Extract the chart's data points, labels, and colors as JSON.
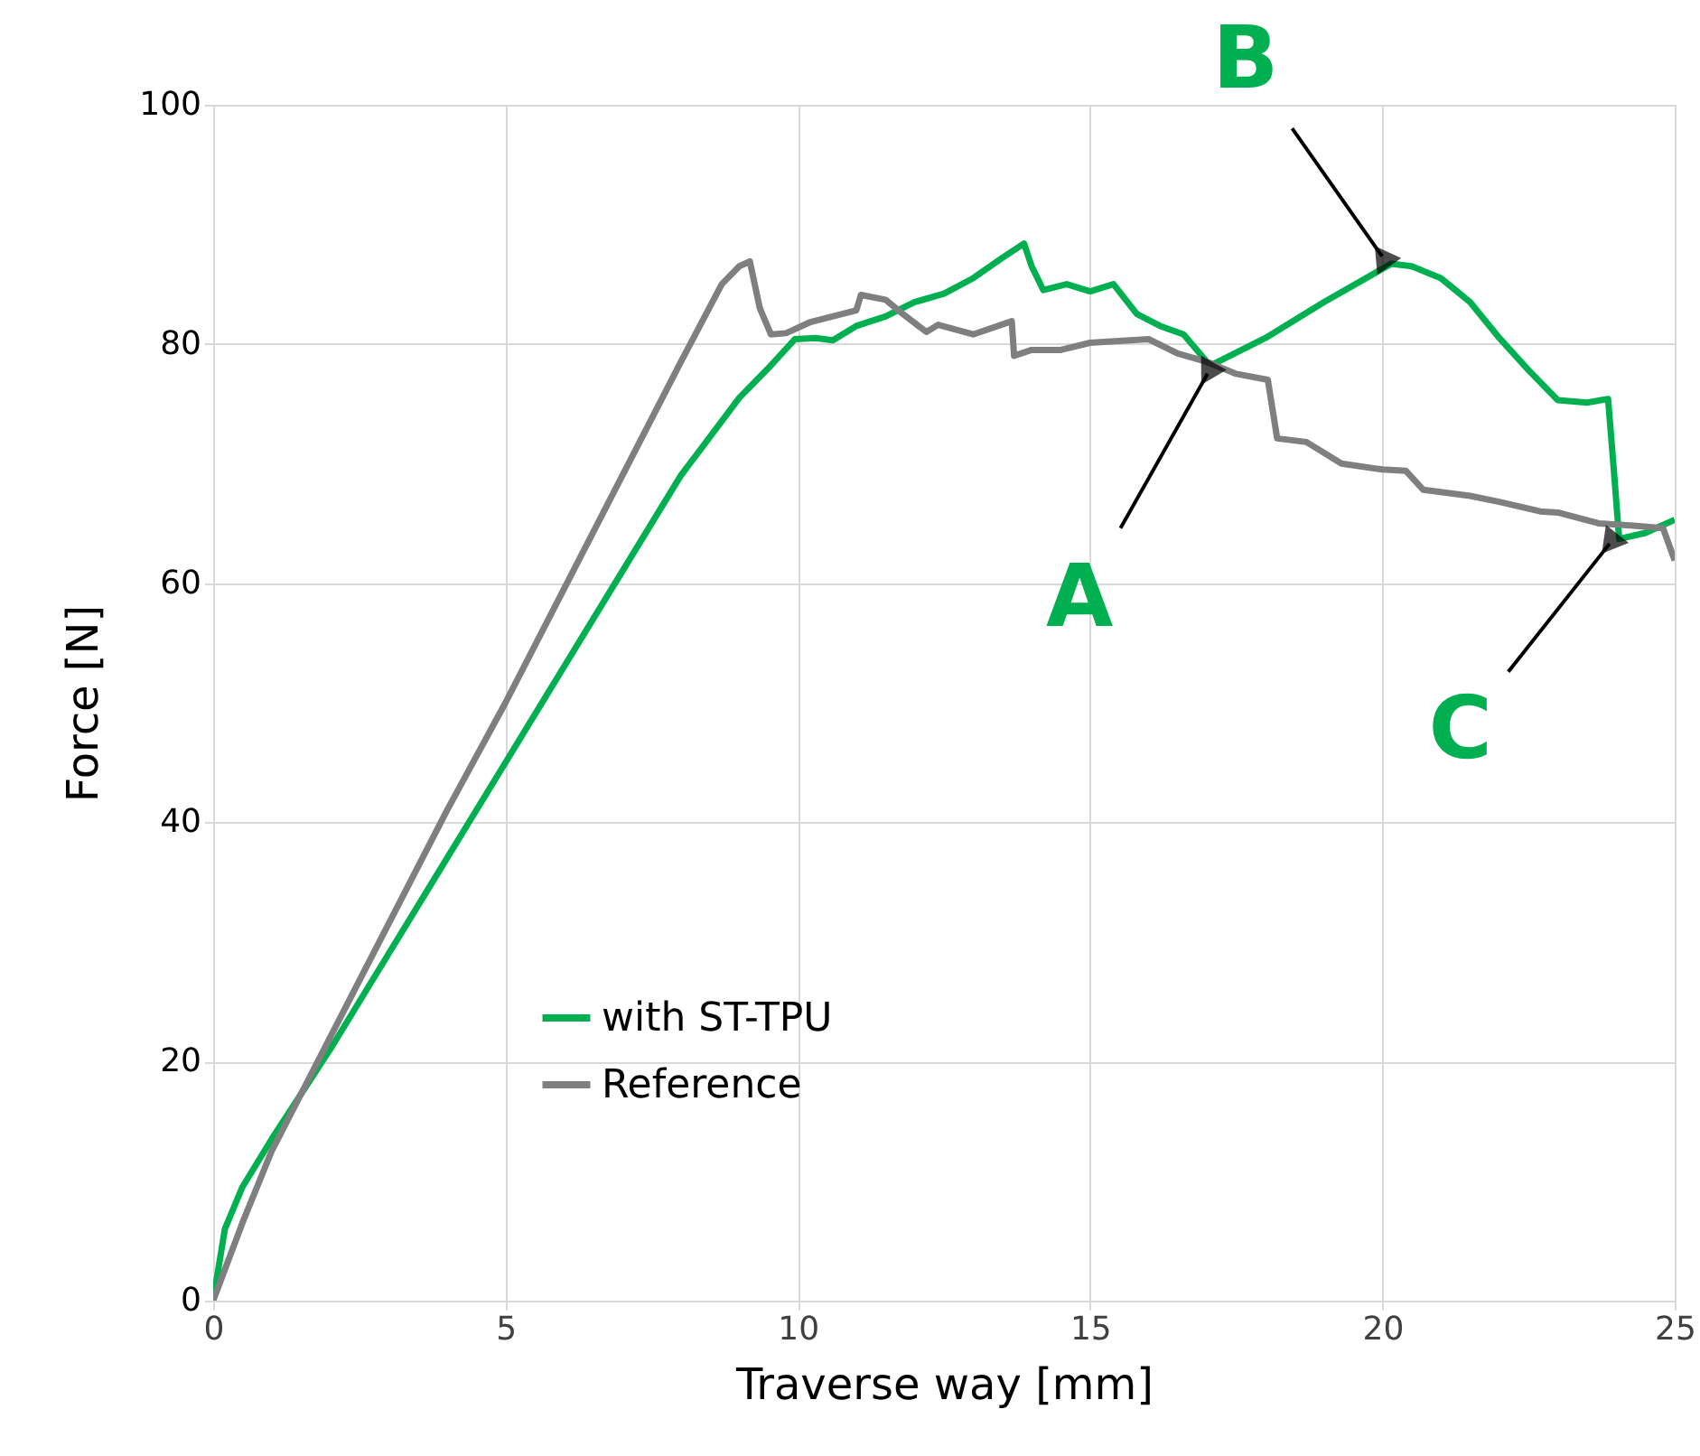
{
  "chart_data": {
    "type": "line",
    "xlabel": "Traverse way [mm]",
    "ylabel": "Force [N]",
    "x": [
      0,
      0.2,
      0.5,
      1,
      2,
      3,
      4,
      5,
      6,
      7,
      8,
      9,
      9.5,
      9.95,
      10.3,
      10.6,
      11,
      11.5,
      12,
      12.5,
      13,
      13.5,
      13.87,
      14,
      14.2,
      14.6,
      15,
      15.4,
      15.8,
      16.2,
      16.6,
      17,
      17.1,
      18,
      19,
      20.15,
      20.5,
      21,
      21.5,
      22,
      22.5,
      23,
      23.5,
      23.86,
      23.95,
      24.05,
      24.5,
      25
    ],
    "series": [
      {
        "name": "with ST-TPU",
        "color": "#00b050",
        "values": [
          0,
          6,
          9.5,
          13.5,
          21,
          29,
          37,
          45,
          53,
          61,
          69,
          75.5,
          78,
          80.4,
          80.5,
          80.3,
          81.5,
          82.3,
          83.5,
          84.2,
          85.5,
          87.2,
          88.4,
          86.5,
          84.5,
          85,
          84.4,
          85,
          82.5,
          81.5,
          80.8,
          78.5,
          78.3,
          80.5,
          83.5,
          86.7,
          86.5,
          85.5,
          83.5,
          80.5,
          77.8,
          75.3,
          75.1,
          75.4,
          70,
          63.7,
          64.2,
          65.3
        ]
      },
      {
        "name": "Reference",
        "color": "#7f7f7f",
        "x": [
          0,
          0.5,
          1,
          2,
          3,
          4,
          5,
          6,
          7,
          8,
          8.7,
          9,
          9.18,
          9.35,
          9.54,
          9.8,
          10.2,
          11,
          11.08,
          11.5,
          11.8,
          12.2,
          12.4,
          13,
          13.66,
          13.7,
          14,
          14.5,
          15,
          16,
          16.5,
          17,
          17.5,
          18.04,
          18.2,
          18.7,
          19.3,
          20,
          20.4,
          20.7,
          21.5,
          22,
          22.7,
          23,
          23.7,
          24.3,
          24.8,
          25
        ],
        "values": [
          0,
          6.5,
          12.5,
          22,
          31.5,
          41,
          50,
          59.5,
          69,
          78.5,
          85,
          86.5,
          86.9,
          83,
          80.8,
          80.9,
          81.8,
          82.8,
          84.1,
          83.7,
          82.5,
          81,
          81.6,
          80.8,
          81.9,
          79,
          79.5,
          79.5,
          80.1,
          80.4,
          79.2,
          78.5,
          77.5,
          77,
          72.1,
          71.8,
          70,
          69.5,
          69.4,
          67.8,
          67.3,
          66.8,
          66,
          65.9,
          65,
          64.8,
          64.6,
          61.9
        ]
      }
    ],
    "xlim": [
      0,
      25
    ],
    "xticks": [
      0,
      5,
      10,
      15,
      20,
      25
    ],
    "ylim": [
      0,
      100
    ],
    "yticks": [
      0,
      20,
      40,
      60,
      80,
      100
    ],
    "grid": true,
    "legend": "left",
    "annotations": [
      {
        "text": "A",
        "x": 17.1,
        "y": 78.3
      },
      {
        "text": "B",
        "x": 20.1,
        "y": 86.6
      },
      {
        "text": "C",
        "x": 24,
        "y": 64
      }
    ]
  }
}
